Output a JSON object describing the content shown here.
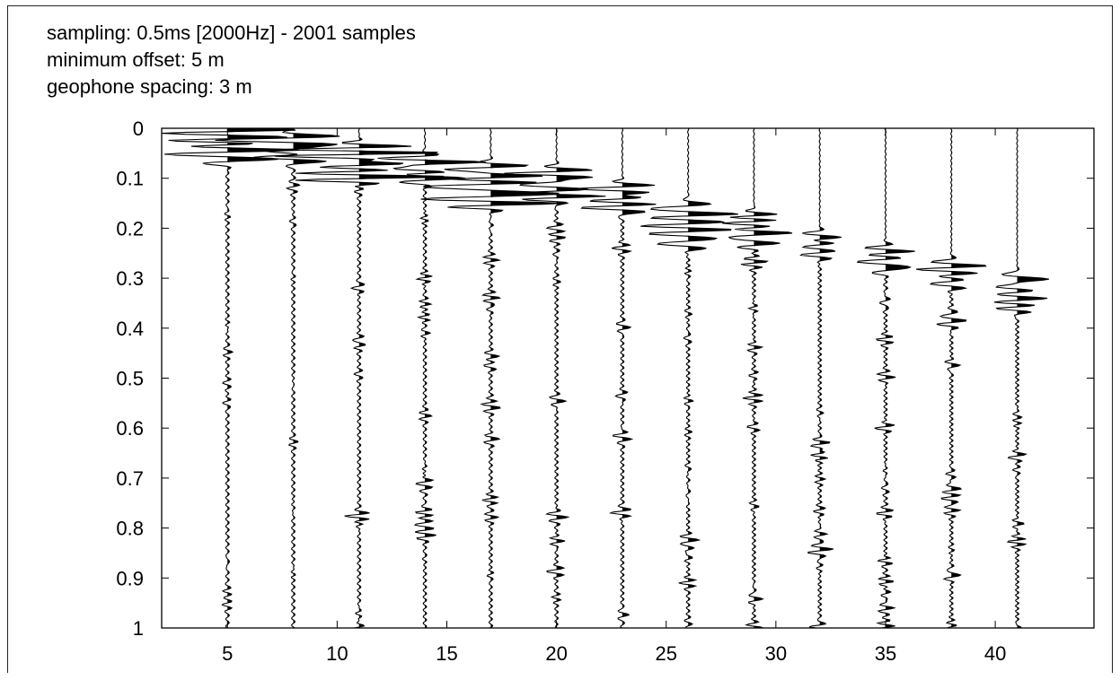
{
  "header": {
    "line1": "sampling: 0.5ms [2000Hz] - 2001 samples",
    "line2": "minimum offset: 5 m",
    "line3": "geophone spacing: 3 m"
  },
  "chart_data": {
    "type": "line",
    "title": "",
    "xlabel": "",
    "ylabel": "",
    "xlim": [
      2,
      44.5
    ],
    "ylim": [
      0,
      1
    ],
    "y_inverted": true,
    "x_ticks": [
      5,
      10,
      15,
      20,
      25,
      30,
      35,
      40
    ],
    "y_ticks": [
      "0",
      "0.1",
      "0.2",
      "0.3",
      "0.4",
      "0.5",
      "0.6",
      "0.7",
      "0.8",
      "0.9",
      "1"
    ],
    "trace_offsets_m": [
      5,
      8,
      11,
      14,
      17,
      20,
      23,
      26,
      29,
      32,
      35,
      38,
      41
    ],
    "first_arrival_s": [
      0.0,
      0.02,
      0.035,
      0.06,
      0.075,
      0.09,
      0.12,
      0.15,
      0.17,
      0.21,
      0.24,
      0.27,
      0.3
    ],
    "peak_amplitude_m": [
      3.2,
      3.5,
      3.8,
      3.4,
      2.9,
      2.4,
      2.2,
      2.0,
      1.8,
      1.6,
      1.5,
      1.5,
      1.5
    ],
    "fill": "positive lobes filled black",
    "grid": false
  }
}
